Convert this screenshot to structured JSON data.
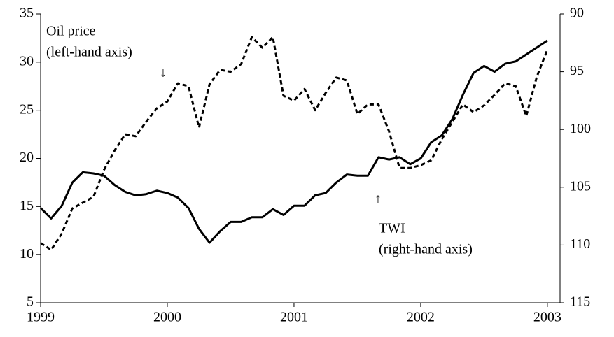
{
  "chart_data": {
    "type": "line",
    "annotations": [
      {
        "text": "Oil price"
      },
      {
        "text": "(left-hand axis)"
      },
      {
        "text": "↓"
      },
      {
        "text": "TWI"
      },
      {
        "text": "(right-hand axis)"
      },
      {
        "text": "↑"
      }
    ],
    "x": [
      1999,
      1999.083,
      1999.167,
      1999.25,
      1999.333,
      1999.417,
      1999.5,
      1999.583,
      1999.667,
      1999.75,
      1999.833,
      1999.917,
      2000,
      2000.083,
      2000.167,
      2000.25,
      2000.333,
      2000.417,
      2000.5,
      2000.583,
      2000.667,
      2000.75,
      2000.833,
      2000.917,
      2001,
      2001.083,
      2001.167,
      2001.25,
      2001.333,
      2001.417,
      2001.5,
      2001.583,
      2001.667,
      2001.75,
      2001.833,
      2001.917,
      2002,
      2002.083,
      2002.167,
      2002.25,
      2002.333,
      2002.417,
      2002.5,
      2002.583,
      2002.667,
      2002.75,
      2002.833,
      2002.917,
      2003
    ],
    "series": [
      {
        "name": "Oil price",
        "color": "#000000",
        "style": "dashed",
        "values": [
          11.2,
          10.5,
          12.2,
          14.8,
          15.4,
          16.0,
          18.8,
          20.8,
          22.5,
          22.3,
          23.8,
          25.2,
          25.9,
          27.8,
          27.5,
          23.2,
          27.7,
          29.2,
          29.0,
          29.8,
          32.6,
          31.5,
          32.6,
          26.5,
          26.0,
          27.2,
          25.0,
          26.8,
          28.4,
          28.1,
          24.6,
          25.6,
          25.6,
          22.8,
          19.0,
          19.0,
          19.3,
          19.8,
          22.0,
          23.8,
          25.6,
          24.8,
          25.5,
          26.6,
          27.8,
          27.5,
          24.4,
          28.5,
          31.3
        ]
      },
      {
        "name": "TWI",
        "color": "#000000",
        "style": "solid",
        "axis": "y2",
        "values": [
          106.8,
          107.7,
          106.6,
          104.6,
          103.7,
          103.8,
          104.0,
          104.8,
          105.4,
          105.7,
          105.6,
          105.3,
          105.5,
          105.9,
          106.8,
          108.6,
          109.8,
          108.8,
          108.0,
          108.0,
          107.6,
          107.6,
          106.9,
          107.4,
          106.6,
          106.6,
          105.7,
          105.5,
          104.6,
          103.9,
          104.0,
          104.0,
          102.4,
          102.6,
          102.4,
          103.0,
          102.5,
          101.1,
          100.5,
          99.1,
          97.0,
          95.1,
          94.5,
          95.0,
          94.3,
          94.1,
          93.5,
          92.9,
          92.3
        ]
      }
    ],
    "xlim": [
      1999,
      2003.1
    ],
    "xticks": [
      1999,
      2000,
      2001,
      2002,
      2003
    ],
    "ylim": [
      5,
      35
    ],
    "yticks": [
      5,
      10,
      15,
      20,
      25,
      30,
      35
    ],
    "y2lim": [
      115,
      90
    ],
    "y2ticks": [
      90,
      95,
      100,
      105,
      110,
      115
    ]
  }
}
